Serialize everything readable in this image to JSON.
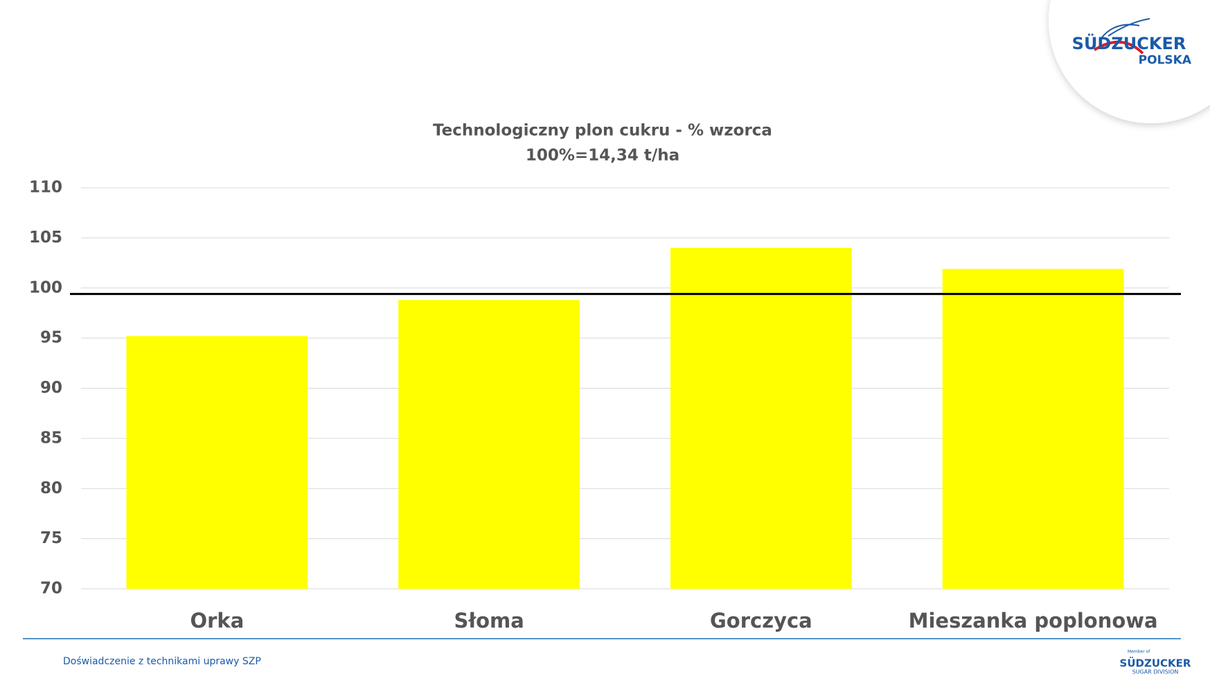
{
  "logo": {
    "name": "SÜDZUCKER",
    "sub": "POLSKA"
  },
  "chart_data": {
    "type": "bar",
    "title": "Technologiczny plon cukru - % wzorca",
    "subtitle": "100%=14,34 t/ha",
    "categories": [
      "Orka",
      "Słoma",
      "Gorczyca",
      "Mieszanka poplonowa"
    ],
    "values": [
      95.2,
      98.8,
      104,
      101.9
    ],
    "color": "#ffff00",
    "ylim": [
      70,
      110
    ],
    "yticks": [
      70,
      75,
      80,
      85,
      90,
      95,
      100,
      105,
      110
    ],
    "grid": true,
    "reference_line": 99.4
  },
  "footer": {
    "text": "Doświadczenie z technikami uprawy SZP",
    "logo_member": "Member of",
    "logo_name": "SÜDZUCKER",
    "logo_sub": "SUGAR DIVISION"
  }
}
